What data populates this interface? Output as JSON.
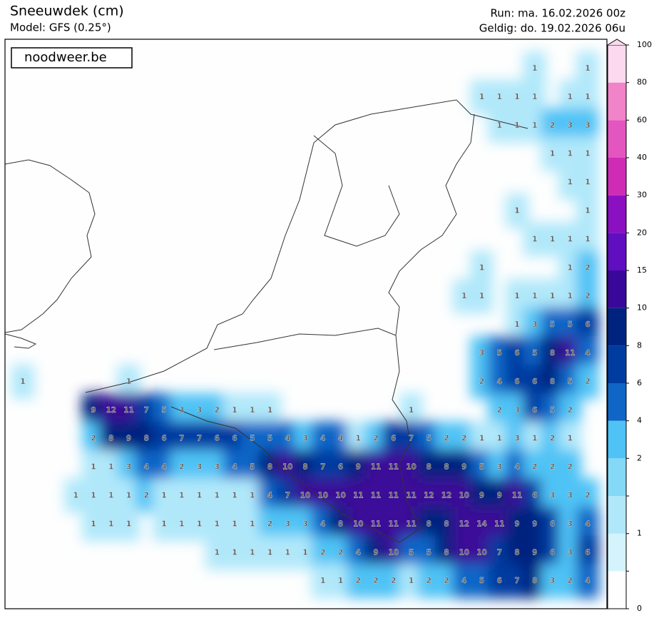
{
  "header": {
    "title": "Sneeuwdek (cm)",
    "model": "Model: GFS (0.25°)",
    "run": "Run: ma. 16.02.2026 00z",
    "valid": "Geldig: do. 19.02.2026 06u"
  },
  "watermark": "noodweer.be",
  "colorbar": {
    "ticks": [
      0,
      null,
      1,
      null,
      2,
      4,
      6,
      8,
      10,
      15,
      20,
      30,
      40,
      60,
      80,
      100
    ],
    "colors": [
      "#fefefe",
      "#d4f3fc",
      "#b0e8fa",
      "#84d9f7",
      "#4fc3f5",
      "#0f66c7",
      "#003ba0",
      "#00237f",
      "#3a0898",
      "#5f0fc0",
      "#8a10c2",
      "#cf2cb6",
      "#e456bf",
      "#f183c9",
      "#fcd9ee"
    ]
  },
  "grid": {
    "rows": [
      [
        null,
        null,
        null,
        null,
        null,
        null,
        null,
        null,
        null,
        null,
        null,
        null,
        null,
        null,
        null,
        null,
        null,
        null,
        null,
        null,
        null,
        null,
        null,
        null,
        null,
        null,
        null,
        null,
        null,
        1,
        null,
        null,
        1
      ],
      [
        null,
        null,
        null,
        null,
        null,
        null,
        null,
        null,
        null,
        null,
        null,
        null,
        null,
        null,
        null,
        null,
        null,
        null,
        null,
        null,
        null,
        null,
        null,
        null,
        null,
        null,
        1,
        1,
        1,
        1,
        null,
        1,
        1
      ],
      [
        null,
        null,
        null,
        null,
        null,
        null,
        null,
        null,
        null,
        null,
        null,
        null,
        null,
        null,
        null,
        null,
        null,
        null,
        null,
        null,
        null,
        null,
        null,
        null,
        null,
        null,
        null,
        1,
        1,
        1,
        2,
        3,
        3
      ],
      [
        null,
        null,
        null,
        null,
        null,
        null,
        null,
        null,
        null,
        null,
        null,
        null,
        null,
        null,
        null,
        null,
        null,
        null,
        null,
        null,
        null,
        null,
        null,
        null,
        null,
        null,
        null,
        null,
        null,
        null,
        1,
        1,
        1
      ],
      [
        null,
        null,
        null,
        null,
        null,
        null,
        null,
        null,
        null,
        null,
        null,
        null,
        null,
        null,
        null,
        null,
        null,
        null,
        null,
        null,
        null,
        null,
        null,
        null,
        null,
        null,
        null,
        null,
        null,
        null,
        null,
        1,
        1
      ],
      [
        null,
        null,
        null,
        null,
        null,
        null,
        null,
        null,
        null,
        null,
        null,
        null,
        null,
        null,
        null,
        null,
        null,
        null,
        null,
        null,
        null,
        null,
        null,
        null,
        null,
        null,
        null,
        null,
        1,
        null,
        null,
        null,
        1
      ],
      [
        null,
        null,
        null,
        null,
        null,
        null,
        null,
        null,
        null,
        null,
        null,
        null,
        null,
        null,
        null,
        null,
        null,
        null,
        null,
        null,
        null,
        null,
        null,
        null,
        null,
        null,
        null,
        null,
        null,
        1,
        1,
        1,
        1
      ],
      [
        null,
        null,
        null,
        null,
        null,
        null,
        null,
        null,
        null,
        null,
        null,
        null,
        null,
        null,
        null,
        null,
        null,
        null,
        null,
        null,
        null,
        null,
        null,
        null,
        null,
        null,
        1,
        null,
        null,
        null,
        null,
        1,
        2
      ],
      [
        null,
        null,
        null,
        null,
        null,
        null,
        null,
        null,
        null,
        null,
        null,
        null,
        null,
        null,
        null,
        null,
        null,
        null,
        null,
        null,
        null,
        null,
        null,
        null,
        null,
        1,
        1,
        null,
        1,
        1,
        1,
        1,
        2
      ],
      [
        null,
        null,
        null,
        null,
        null,
        null,
        null,
        null,
        null,
        null,
        null,
        null,
        null,
        null,
        null,
        null,
        null,
        null,
        null,
        null,
        null,
        null,
        null,
        null,
        null,
        null,
        null,
        null,
        1,
        3,
        5,
        5,
        6
      ],
      [
        null,
        null,
        null,
        null,
        null,
        null,
        null,
        null,
        null,
        null,
        null,
        null,
        null,
        null,
        null,
        null,
        null,
        null,
        null,
        null,
        null,
        null,
        null,
        null,
        null,
        null,
        3,
        5,
        6,
        5,
        8,
        11,
        4
      ],
      [
        1,
        null,
        null,
        null,
        null,
        null,
        1,
        null,
        null,
        null,
        null,
        null,
        null,
        null,
        null,
        null,
        null,
        null,
        null,
        null,
        null,
        null,
        null,
        null,
        null,
        null,
        2,
        4,
        6,
        6,
        8,
        5,
        2
      ],
      [
        null,
        null,
        null,
        null,
        9,
        12,
        11,
        7,
        5,
        3,
        3,
        2,
        1,
        1,
        1,
        null,
        null,
        null,
        null,
        null,
        null,
        null,
        1,
        null,
        null,
        null,
        null,
        2,
        3,
        6,
        5,
        2,
        null
      ],
      [
        null,
        null,
        null,
        null,
        2,
        8,
        9,
        8,
        6,
        7,
        7,
        6,
        6,
        5,
        5,
        4,
        3,
        4,
        4,
        1,
        2,
        6,
        7,
        5,
        2,
        2,
        1,
        1,
        3,
        1,
        2,
        1,
        null
      ],
      [
        null,
        null,
        null,
        null,
        1,
        1,
        3,
        4,
        4,
        2,
        3,
        3,
        4,
        5,
        8,
        10,
        8,
        7,
        6,
        9,
        11,
        11,
        10,
        8,
        8,
        9,
        5,
        3,
        4,
        2,
        2,
        2,
        null
      ],
      [
        null,
        null,
        null,
        1,
        1,
        1,
        1,
        2,
        1,
        1,
        1,
        1,
        1,
        1,
        4,
        7,
        10,
        10,
        10,
        11,
        11,
        11,
        11,
        12,
        12,
        10,
        9,
        9,
        11,
        6,
        3,
        3,
        2
      ],
      [
        null,
        null,
        null,
        null,
        1,
        1,
        1,
        null,
        1,
        1,
        1,
        1,
        1,
        1,
        2,
        3,
        3,
        4,
        8,
        10,
        11,
        11,
        11,
        8,
        8,
        12,
        14,
        11,
        9,
        9,
        6,
        3,
        4
      ],
      [
        null,
        null,
        null,
        null,
        null,
        null,
        null,
        null,
        null,
        null,
        null,
        1,
        1,
        1,
        1,
        1,
        1,
        2,
        2,
        4,
        9,
        10,
        5,
        5,
        8,
        10,
        10,
        7,
        8,
        9,
        6,
        3,
        6
      ],
      [
        null,
        null,
        null,
        null,
        null,
        null,
        null,
        null,
        null,
        null,
        null,
        null,
        null,
        null,
        null,
        null,
        null,
        1,
        1,
        2,
        2,
        2,
        1,
        2,
        2,
        4,
        5,
        6,
        7,
        8,
        3,
        2,
        4
      ]
    ]
  }
}
